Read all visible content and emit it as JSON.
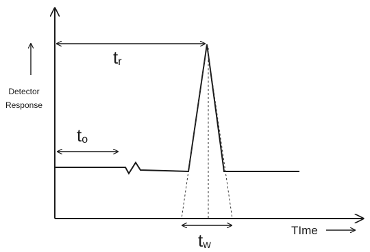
{
  "y_axis_label": {
    "lines": [
      "Detector",
      "Response"
    ]
  },
  "x_axis_label": "TIme",
  "labels": {
    "retention_time": {
      "main": "t",
      "sub": "r"
    },
    "dead_time": {
      "main": "t",
      "sub": "o"
    },
    "peak_width": {
      "main": "t",
      "sub": "w"
    }
  }
}
